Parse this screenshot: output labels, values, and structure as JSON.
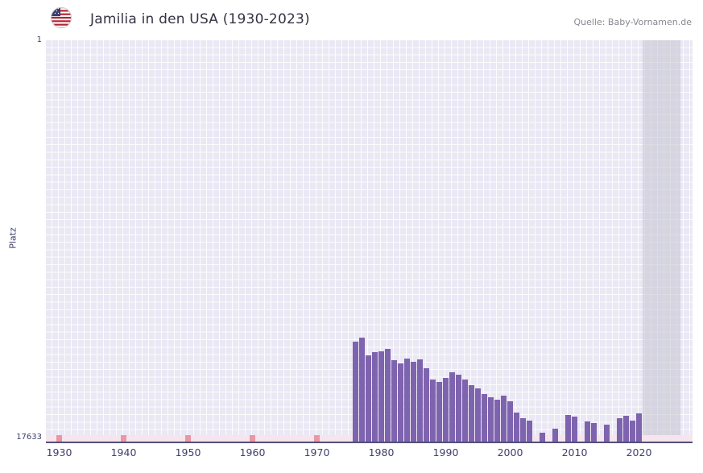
{
  "header": {
    "title": "Jamilia in den USA (1930-2023)",
    "source": "Quelle: Baby-Vornamen.de",
    "flag": "us-flag"
  },
  "chart_data": {
    "type": "bar",
    "title": "Jamilia in den USA (1930-2023)",
    "xlabel": "",
    "ylabel": "Platz",
    "y_axis": {
      "min": 1,
      "max": 17633,
      "top_label": "1",
      "bottom_label": "17633",
      "inverted": true
    },
    "x_range": [
      1930,
      2023
    ],
    "x_ticks": [
      "1930",
      "1940",
      "1950",
      "1960",
      "1970",
      "1980",
      "1990",
      "2000",
      "2010",
      "2020"
    ],
    "grid": true,
    "legend": null,
    "bar_color": "#7e63ae",
    "plot_background": "#eae8f4",
    "axis_color": "#50507a",
    "no_data_band_color": "rgba(195,195,207,0.55)",
    "unranked_band_color": "#f7e4ec",
    "unranked_mark_color": "#ec96a4",
    "bars": [
      {
        "year": 1976,
        "rank": 13250
      },
      {
        "year": 1977,
        "rank": 13050
      },
      {
        "year": 1978,
        "rank": 13850
      },
      {
        "year": 1979,
        "rank": 13700
      },
      {
        "year": 1980,
        "rank": 13680
      },
      {
        "year": 1981,
        "rank": 13550
      },
      {
        "year": 1982,
        "rank": 14050
      },
      {
        "year": 1983,
        "rank": 14200
      },
      {
        "year": 1984,
        "rank": 13980
      },
      {
        "year": 1985,
        "rank": 14120
      },
      {
        "year": 1986,
        "rank": 14020
      },
      {
        "year": 1987,
        "rank": 14400
      },
      {
        "year": 1988,
        "rank": 14900
      },
      {
        "year": 1989,
        "rank": 15000
      },
      {
        "year": 1990,
        "rank": 14850
      },
      {
        "year": 1991,
        "rank": 14600
      },
      {
        "year": 1992,
        "rank": 14700
      },
      {
        "year": 1993,
        "rank": 14900
      },
      {
        "year": 1994,
        "rank": 15150
      },
      {
        "year": 1995,
        "rank": 15300
      },
      {
        "year": 1996,
        "rank": 15550
      },
      {
        "year": 1997,
        "rank": 15680
      },
      {
        "year": 1998,
        "rank": 15780
      },
      {
        "year": 1999,
        "rank": 15600
      },
      {
        "year": 2000,
        "rank": 15870
      },
      {
        "year": 2001,
        "rank": 16350
      },
      {
        "year": 2002,
        "rank": 16600
      },
      {
        "year": 2003,
        "rank": 16700
      },
      {
        "year": 2005,
        "rank": 17250
      },
      {
        "year": 2007,
        "rank": 17050
      },
      {
        "year": 2009,
        "rank": 16450
      },
      {
        "year": 2010,
        "rank": 16550
      },
      {
        "year": 2012,
        "rank": 16750
      },
      {
        "year": 2013,
        "rank": 16800
      },
      {
        "year": 2015,
        "rank": 16900
      },
      {
        "year": 2017,
        "rank": 16600
      },
      {
        "year": 2018,
        "rank": 16500
      },
      {
        "year": 2019,
        "rank": 16700
      },
      {
        "year": 2020,
        "rank": 16400
      }
    ],
    "unranked_years": [
      1930,
      1940,
      1950,
      1960,
      1970
    ],
    "no_data_region": [
      2021,
      2023
    ]
  }
}
